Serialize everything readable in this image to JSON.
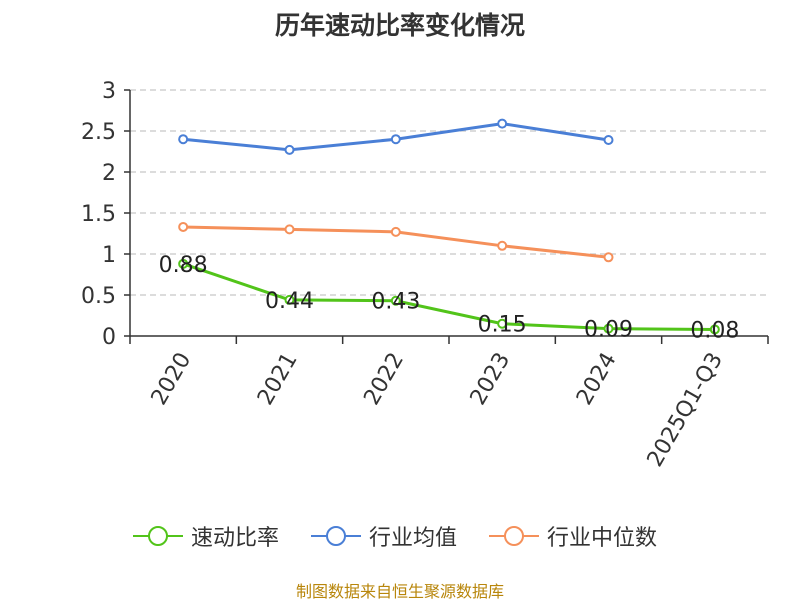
{
  "chart_data": {
    "type": "line",
    "title": "历年速动比率变化情况",
    "categories": [
      "2020",
      "2021",
      "2022",
      "2023",
      "2024",
      "2025Q1-Q3"
    ],
    "ylim": [
      0,
      3
    ],
    "yticks": [
      "0",
      "0.5",
      "1",
      "1.5",
      "2",
      "2.5",
      "3"
    ],
    "grid": true,
    "legend_position": "bottom",
    "series": [
      {
        "name": "速动比率",
        "color": "#52c41a",
        "show_labels": true,
        "values": [
          0.88,
          0.44,
          0.43,
          0.15,
          0.09,
          0.08
        ],
        "labels": [
          "0.88",
          "0.44",
          "0.43",
          "0.15",
          "0.09",
          "0.08"
        ]
      },
      {
        "name": "行业均值",
        "color": "#4a7fd6",
        "show_labels": false,
        "values": [
          2.4,
          2.27,
          2.4,
          2.59,
          2.39,
          null
        ]
      },
      {
        "name": "行业中位数",
        "color": "#f5905a",
        "show_labels": false,
        "values": [
          1.33,
          1.3,
          1.27,
          1.1,
          0.96,
          null
        ]
      }
    ]
  },
  "source_text": "制图数据来自恒生聚源数据库"
}
